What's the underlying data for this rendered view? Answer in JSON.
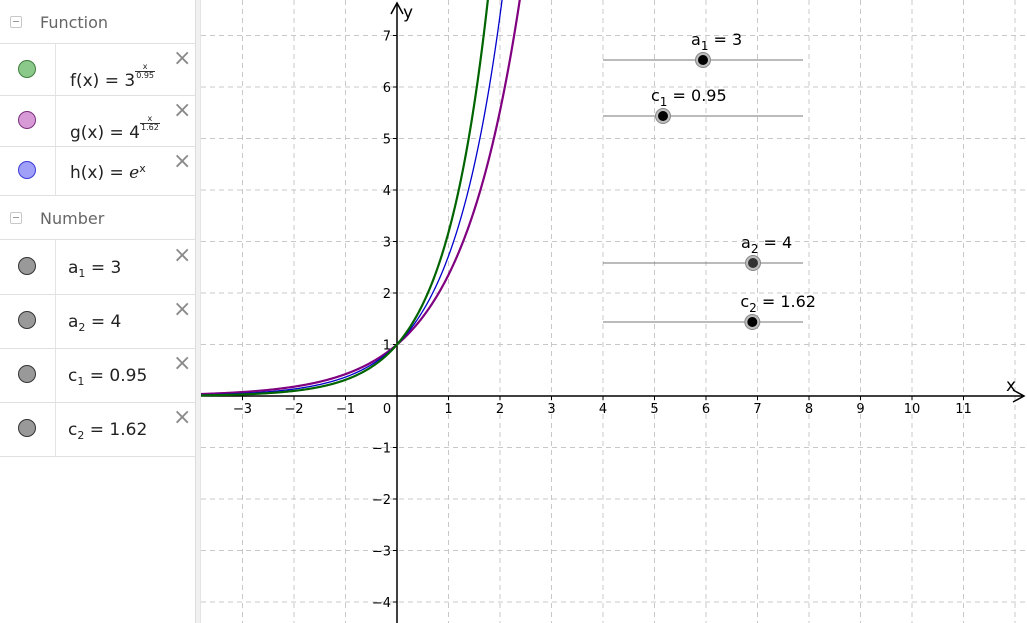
{
  "algebra": {
    "groups": [
      {
        "label": "Function"
      },
      {
        "label": "Number"
      }
    ],
    "functions": [
      {
        "name": "f",
        "color": "#5ab05a",
        "fill": "#8bc98b",
        "lhs": "f(x) =",
        "base": "3",
        "exp_num": "x",
        "exp_den": "0.95"
      },
      {
        "name": "g",
        "color": "#9c3c9c",
        "fill": "#d79ad7",
        "lhs": "g(x) =",
        "base": "4",
        "exp_num": "x",
        "exp_den": "1.62"
      },
      {
        "name": "h",
        "color": "#3a3ad8",
        "fill": "#a0a0f8",
        "lhs": "h(x) =",
        "base": "e",
        "exp": "x"
      }
    ],
    "numbers": [
      {
        "var": "a",
        "sub": "1",
        "eq": "=",
        "value": "3"
      },
      {
        "var": "a",
        "sub": "2",
        "eq": "=",
        "value": "4"
      },
      {
        "var": "c",
        "sub": "1",
        "eq": "=",
        "value": "0.95"
      },
      {
        "var": "c",
        "sub": "2",
        "eq": "=",
        "value": "1.62"
      }
    ],
    "close_glyph": "×"
  },
  "graphics": {
    "x_axis_label": "x",
    "y_axis_label": "y",
    "x_ticks": [
      "−3",
      "−2",
      "−1",
      "0",
      "1",
      "2",
      "3",
      "4",
      "5",
      "6",
      "7",
      "8",
      "9",
      "10",
      "11"
    ],
    "y_ticks_pos": [
      "1",
      "2",
      "3",
      "4",
      "5",
      "6",
      "7"
    ],
    "y_ticks_neg": [
      "−1",
      "−2",
      "−3",
      "−4"
    ],
    "sliders": [
      {
        "name": "a",
        "sub": "1",
        "label_rest": " = 3",
        "min": 1,
        "max": 5,
        "value": 3,
        "dot": "#000000"
      },
      {
        "name": "c",
        "sub": "1",
        "label_rest": " = 0.95",
        "min": 0.5,
        "max": 2,
        "value": 0.95,
        "dot": "#000000"
      },
      {
        "name": "a",
        "sub": "2",
        "label_rest": " = 4",
        "min": 1,
        "max": 5,
        "value": 4,
        "dot": "#333333"
      },
      {
        "name": "c",
        "sub": "2",
        "label_rest": " = 1.62",
        "min": 0.5,
        "max": 2,
        "value": 1.62,
        "dot": "#000000"
      }
    ],
    "curve_colors": {
      "f": "#006400",
      "g": "#800080",
      "h": "#0000cd"
    }
  }
}
